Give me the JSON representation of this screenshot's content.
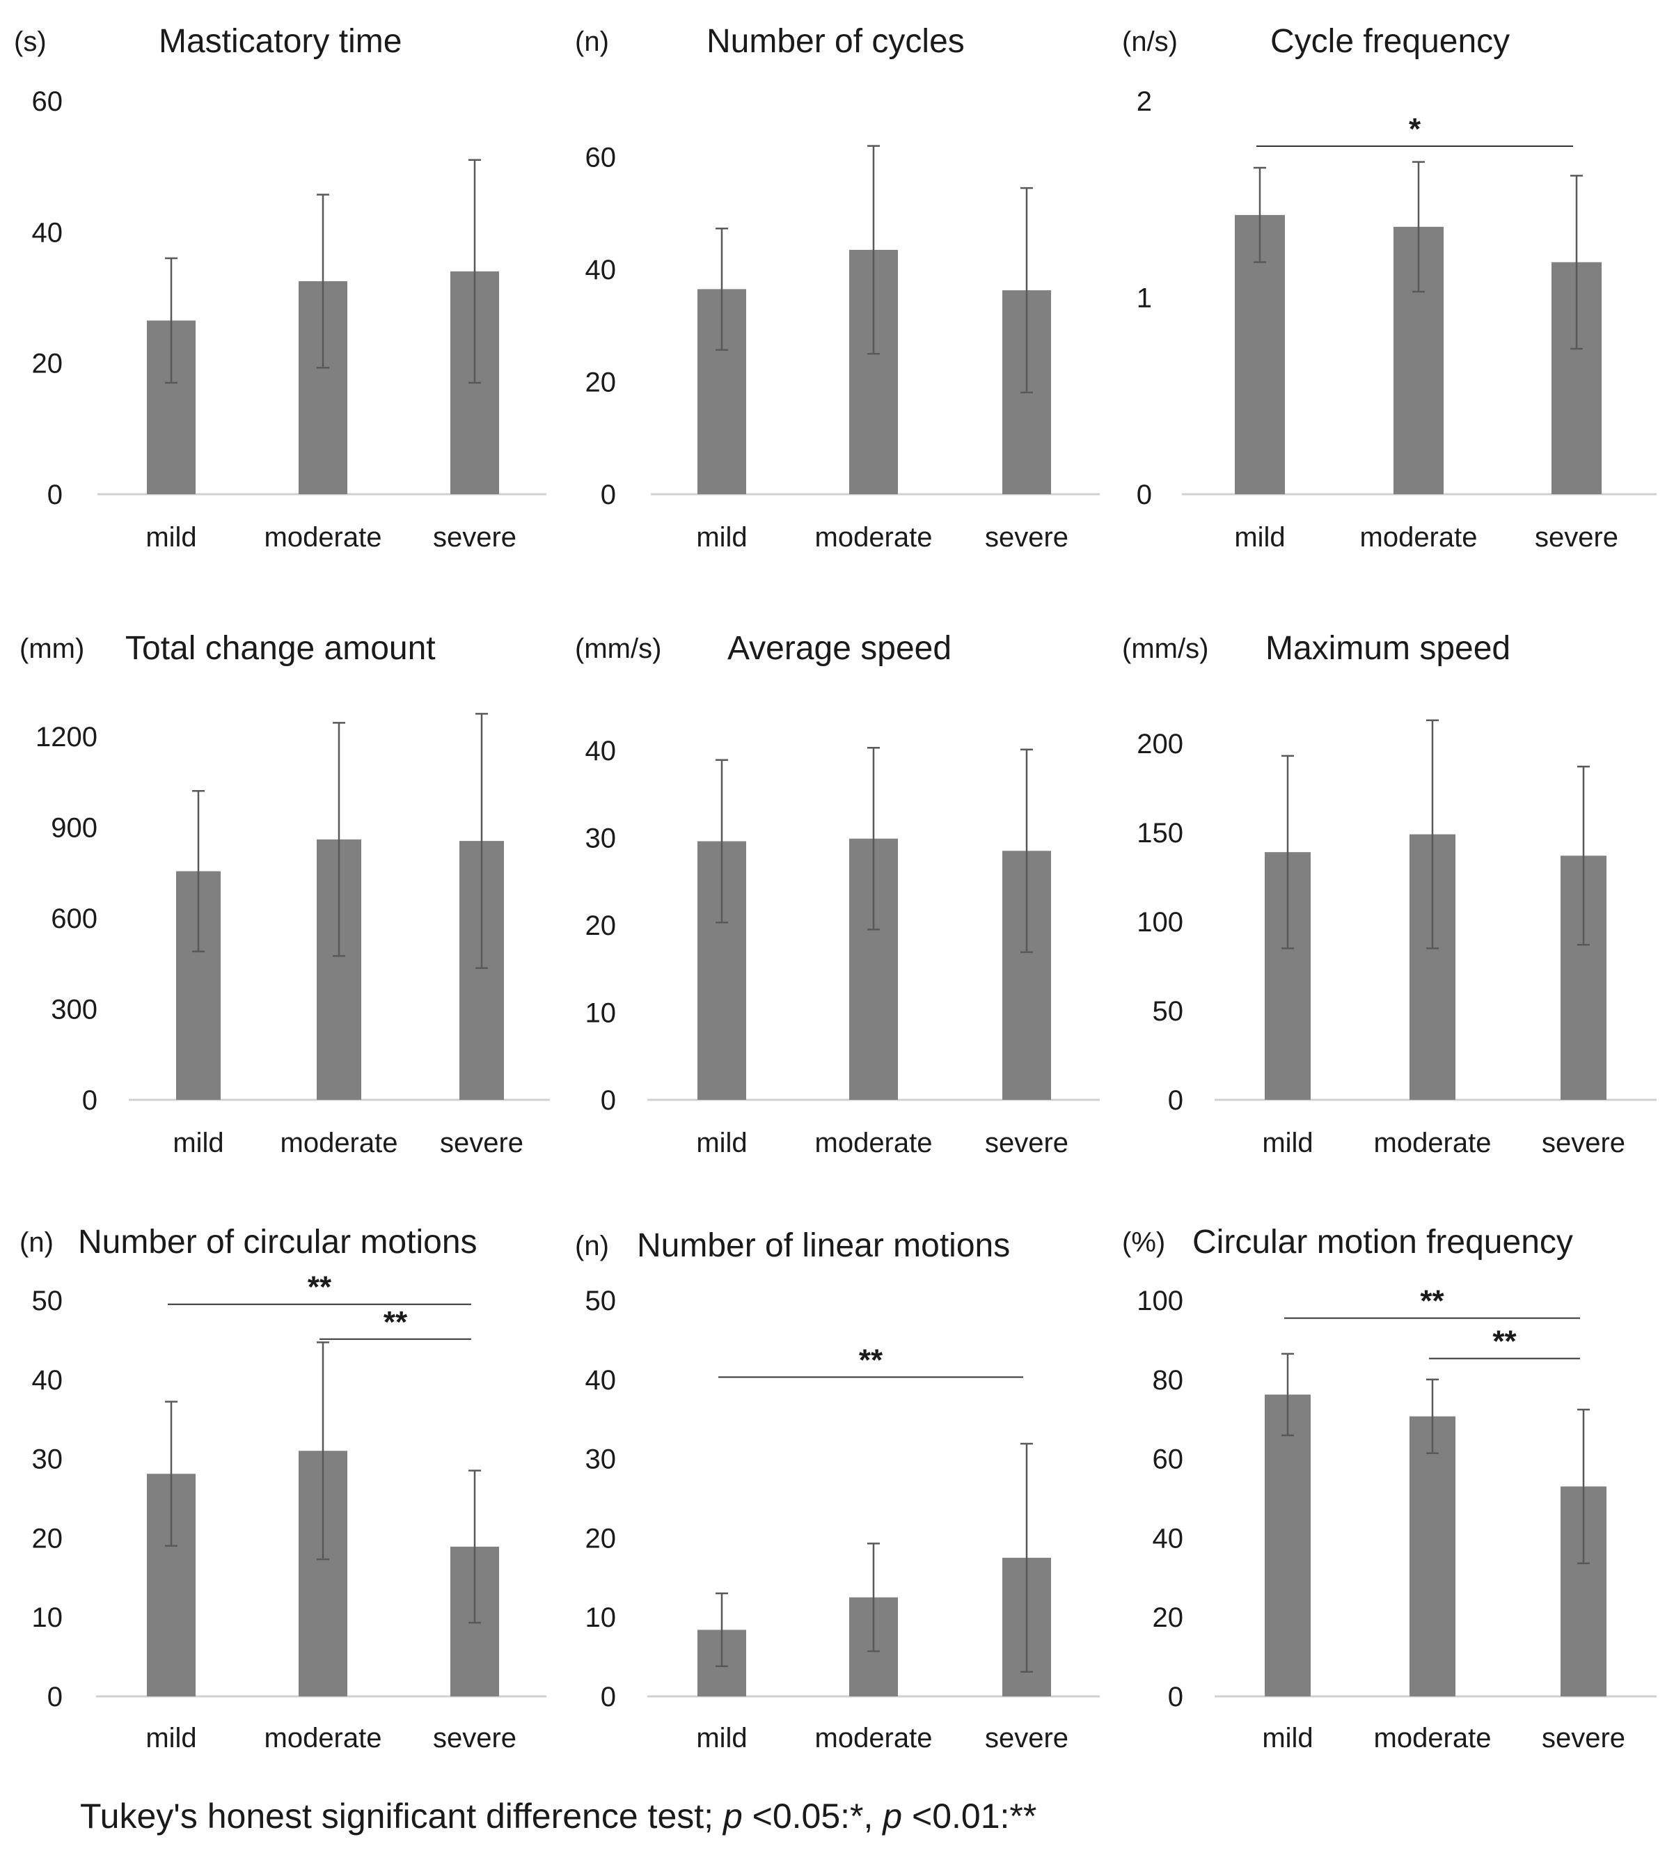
{
  "footnote": {
    "prefix": "Tukey's honest significant difference test; ",
    "p1": "p",
    "mid1": " <0.05:*, ",
    "p2": "p",
    "mid2": " <0.01:**"
  },
  "colors": {
    "bar": "#808080",
    "error": "#595959",
    "axis": "#d0d0d0",
    "text": "#1a1a1a"
  },
  "chart_data": [
    {
      "type": "bar",
      "title": "Masticatory time",
      "unit": "(s)",
      "categories": [
        "mild",
        "moderate",
        "severe"
      ],
      "values": [
        26.5,
        32.5,
        34
      ],
      "errors": [
        9.5,
        13.2,
        17
      ],
      "yticks": [
        0,
        20,
        40,
        60
      ],
      "ylim": [
        0,
        60
      ],
      "significance": []
    },
    {
      "type": "bar",
      "title": "Number of cycles",
      "unit": "(n)",
      "categories": [
        "mild",
        "moderate",
        "severe"
      ],
      "values": [
        36.5,
        43.5,
        36.3
      ],
      "errors": [
        10.8,
        18.5,
        18.2
      ],
      "yticks": [
        0,
        20,
        40,
        60
      ],
      "ylim": [
        0,
        70
      ],
      "significance": []
    },
    {
      "type": "bar",
      "title": "Cycle frequency",
      "unit": "(n/s)",
      "categories": [
        "mild",
        "moderate",
        "severe"
      ],
      "values": [
        1.42,
        1.36,
        1.18
      ],
      "errors": [
        0.24,
        0.33,
        0.44
      ],
      "yticks": [
        0,
        1,
        2
      ],
      "ylim": [
        0,
        2
      ],
      "significance": [
        {
          "from": 0,
          "to": 2,
          "label": "*",
          "y": 1.77
        }
      ]
    },
    {
      "type": "bar",
      "title": "Total change amount",
      "unit": "(mm)",
      "categories": [
        "mild",
        "moderate",
        "severe"
      ],
      "values": [
        755,
        860,
        855
      ],
      "errors": [
        265,
        385,
        420
      ],
      "yticks": [
        0,
        300,
        600,
        900,
        1200
      ],
      "ylim": [
        0,
        1200
      ],
      "significance": []
    },
    {
      "type": "bar",
      "title": "Average speed",
      "unit": "(mm/s)",
      "categories": [
        "mild",
        "moderate",
        "severe"
      ],
      "values": [
        29.6,
        29.9,
        28.5
      ],
      "errors": [
        9.3,
        10.4,
        11.6
      ],
      "yticks": [
        0,
        10,
        20,
        30,
        40
      ],
      "ylim": [
        0,
        40
      ],
      "significance": []
    },
    {
      "type": "bar",
      "title": "Maximum speed",
      "unit": "(mm/s)",
      "categories": [
        "mild",
        "moderate",
        "severe"
      ],
      "values": [
        139,
        149,
        137
      ],
      "errors": [
        54,
        64,
        50
      ],
      "yticks": [
        0,
        50,
        100,
        150,
        200
      ],
      "ylim": [
        0,
        200
      ],
      "significance": []
    },
    {
      "type": "bar",
      "title": "Number of circular motions",
      "unit": "(n)",
      "categories": [
        "mild",
        "moderate",
        "severe"
      ],
      "values": [
        28.1,
        31,
        18.9
      ],
      "errors": [
        9.1,
        13.7,
        9.6
      ],
      "yticks": [
        0,
        10,
        20,
        30,
        40,
        50
      ],
      "ylim": [
        0,
        50
      ],
      "significance": [
        {
          "from": 0,
          "to": 2,
          "label": "**",
          "y": 49.5
        },
        {
          "from": 1,
          "to": 2,
          "label": "**",
          "y": 45.1
        }
      ]
    },
    {
      "type": "bar",
      "title": "Number of linear motions",
      "unit": "(n)",
      "categories": [
        "mild",
        "moderate",
        "severe"
      ],
      "values": [
        8.4,
        12.5,
        17.5
      ],
      "errors": [
        4.6,
        6.8,
        14.4
      ],
      "yticks": [
        0,
        10,
        20,
        30,
        40,
        50
      ],
      "ylim": [
        0,
        50
      ],
      "significance": [
        {
          "from": 0,
          "to": 2,
          "label": "**",
          "y": 40.3
        }
      ]
    },
    {
      "type": "bar",
      "title": "Circular motion frequency",
      "unit": "(%)",
      "categories": [
        "mild",
        "moderate",
        "severe"
      ],
      "values": [
        76.2,
        70.7,
        53
      ],
      "errors": [
        10.3,
        9.3,
        19.4
      ],
      "yticks": [
        0,
        20,
        40,
        60,
        80,
        100
      ],
      "ylim": [
        0,
        100
      ],
      "significance": [
        {
          "from": 0,
          "to": 2,
          "label": "**",
          "y": 95.5
        },
        {
          "from": 1,
          "to": 2,
          "label": "**",
          "y": 85.3
        }
      ]
    }
  ]
}
